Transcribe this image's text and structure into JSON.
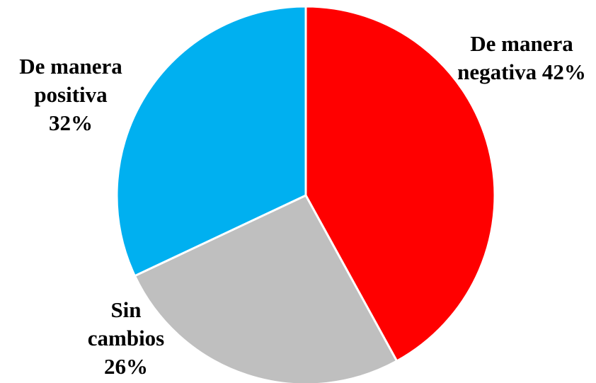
{
  "chart_data": {
    "type": "pie",
    "title": "",
    "slices": [
      {
        "name": "De manera negativa",
        "value": 42,
        "color": "#ff0000",
        "label_lines": [
          "De manera",
          "negativa 42%"
        ]
      },
      {
        "name": "Sin cambios",
        "value": 26,
        "color": "#bfbfbf",
        "label_lines": [
          "Sin",
          "cambios",
          "26%"
        ]
      },
      {
        "name": "De manera positiva",
        "value": 32,
        "color": "#00b0f0",
        "label_lines": [
          "De manera",
          "positiva",
          "32%"
        ]
      }
    ],
    "start_angle": "12 o'clock",
    "direction": "clockwise",
    "legend": "none"
  }
}
